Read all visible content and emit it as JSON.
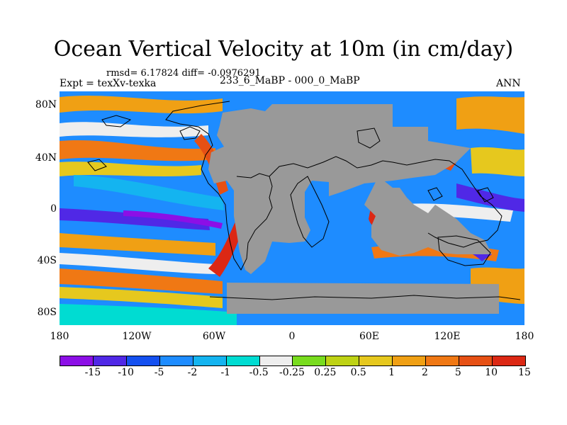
{
  "title": "Ocean Vertical Velocity at 10m (in cm/day)",
  "stats": "rmsd= 6.17824 diff= -0.0976291",
  "expt": "Expt = texXv-texka",
  "period": "233_6_MaBP - 000_0_MaBP",
  "season": "ANN",
  "lat_labels": [
    "80N",
    "40N",
    "0",
    "40S",
    "80S"
  ],
  "lon_labels": [
    "180",
    "120W",
    "60W",
    "0",
    "60E",
    "120E",
    "180"
  ],
  "colorbar": {
    "colors": [
      "#8c0fe6",
      "#5028e6",
      "#1450f0",
      "#1e8cff",
      "#14b4f0",
      "#00dcd2",
      "#eeeeee",
      "#78dc1e",
      "#bed214",
      "#e6c81e",
      "#f0a014",
      "#f07814",
      "#e65014",
      "#dc2814"
    ],
    "labels": [
      "-15",
      "-10",
      "-5",
      "-2",
      "-1",
      "-0.5",
      "-0.25",
      "0.25",
      "0.5",
      "1",
      "2",
      "5",
      "10",
      "15"
    ]
  },
  "land_color": "#999999"
}
